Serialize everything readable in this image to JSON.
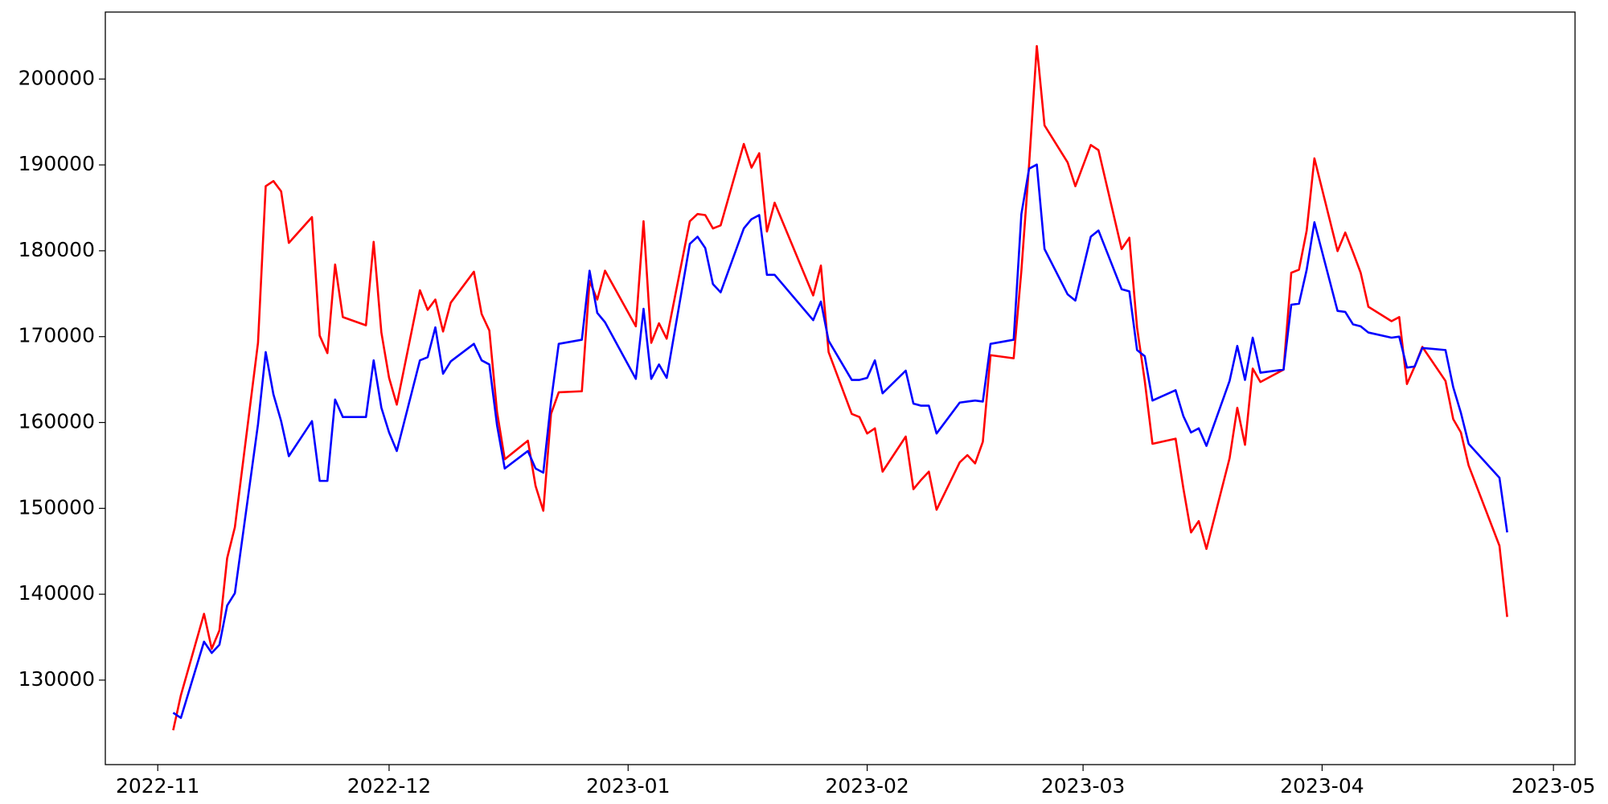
{
  "chart_data": {
    "type": "line",
    "x": [
      2,
      3,
      6,
      7,
      8,
      9,
      10,
      13,
      14,
      15,
      16,
      17,
      20,
      21,
      22,
      23,
      24,
      27,
      28,
      29,
      30,
      31,
      34,
      35,
      36,
      37,
      38,
      41,
      42,
      43,
      44,
      45,
      48,
      49,
      50,
      51,
      52,
      55,
      56,
      57,
      58,
      62,
      63,
      64,
      65,
      66,
      69,
      70,
      71,
      72,
      73,
      76,
      77,
      78,
      79,
      80,
      85,
      86,
      87,
      90,
      91,
      92,
      93,
      94,
      97,
      98,
      99,
      100,
      101,
      104,
      105,
      106,
      107,
      108,
      111,
      112,
      113,
      114,
      115,
      118,
      119,
      121,
      122,
      125,
      126,
      127,
      128,
      129,
      132,
      133,
      134,
      135,
      136,
      139,
      140,
      141,
      142,
      143,
      146,
      147,
      148,
      149,
      150,
      153,
      154,
      155,
      156,
      157,
      160,
      161,
      162,
      163,
      164,
      167,
      168,
      169,
      170,
      174,
      175
    ],
    "series": [
      {
        "color": "#ff0000",
        "values": [
          124160,
          128240,
          137720,
          133640,
          135800,
          144200,
          147800,
          169280,
          187520,
          188120,
          186920,
          180920,
          183920,
          170120,
          168080,
          178400,
          172280,
          171320,
          181040,
          170480,
          165200,
          162080,
          175400,
          173120,
          174320,
          170600,
          173960,
          177560,
          172640,
          170720,
          161240,
          155720,
          157880,
          152600,
          149720,
          161000,
          163520,
          163640,
          176480,
          174320,
          177680,
          171200,
          183440,
          169280,
          171560,
          169760,
          183440,
          184280,
          184160,
          182600,
          182960,
          192440,
          189680,
          191360,
          182240,
          185600,
          174800,
          178280,
          168200,
          161000,
          160640,
          158720,
          159320,
          154280,
          158360,
          152240,
          153320,
          154280,
          149840,
          155360,
          156200,
          155240,
          157760,
          167840,
          167480,
          177680,
          190040,
          203840,
          194600,
          190280,
          187520,
          192320,
          191720,
          180200,
          181520,
          171080,
          164840,
          157520,
          158120,
          152360,
          147200,
          148520,
          145280,
          155840,
          161720,
          157400,
          166280,
          164720,
          166160,
          177440,
          177800,
          182360,
          190760,
          179960,
          182120,
          179840,
          177440,
          173480,
          171800,
          172280,
          164480,
          166520,
          168800,
          164840,
          160400,
          158840,
          155000,
          145640,
          137360
        ]
      },
      {
        "color": "#0000ff",
        "values": [
          126200,
          125600,
          134480,
          133160,
          134120,
          138680,
          140120,
          159800,
          168200,
          163280,
          160160,
          156080,
          160160,
          153200,
          153200,
          162680,
          160640,
          160640,
          167240,
          161720,
          158840,
          156680,
          167240,
          167600,
          171080,
          165680,
          167120,
          169160,
          167240,
          166760,
          159680,
          154640,
          156680,
          154640,
          154160,
          162440,
          169160,
          169640,
          177680,
          172760,
          171680,
          165080,
          173240,
          165080,
          166760,
          165200,
          180800,
          181640,
          180320,
          176120,
          175160,
          182600,
          183680,
          184160,
          177200,
          177200,
          171920,
          174080,
          169520,
          164960,
          164960,
          165200,
          167240,
          163400,
          166040,
          162200,
          161960,
          161960,
          158720,
          162320,
          162440,
          162560,
          162440,
          169160,
          169640,
          184280,
          189560,
          190040,
          180200,
          174920,
          174200,
          181640,
          182360,
          175520,
          175280,
          168440,
          167720,
          162560,
          163760,
          160760,
          158840,
          159320,
          157280,
          164840,
          168920,
          164960,
          169880,
          165800,
          166160,
          173720,
          173840,
          177800,
          183320,
          173000,
          172880,
          171440,
          171200,
          170480,
          169880,
          170000,
          166400,
          166520,
          168680,
          168440,
          164120,
          161120,
          157520,
          153560,
          147200
        ]
      }
    ],
    "xlim": [
      -6.8,
      183.8
    ],
    "xticks": [
      {
        "value": 0,
        "label": "2022-11"
      },
      {
        "value": 30,
        "label": "2022-12"
      },
      {
        "value": 61,
        "label": "2023-01"
      },
      {
        "value": 92,
        "label": "2023-02"
      },
      {
        "value": 120,
        "label": "2023-03"
      },
      {
        "value": 151,
        "label": "2023-04"
      },
      {
        "value": 181,
        "label": "2023-05"
      }
    ],
    "ylim": [
      120160,
      207800
    ],
    "yticks": [
      130000,
      140000,
      150000,
      160000,
      170000,
      180000,
      190000,
      200000
    ],
    "grid": false
  }
}
